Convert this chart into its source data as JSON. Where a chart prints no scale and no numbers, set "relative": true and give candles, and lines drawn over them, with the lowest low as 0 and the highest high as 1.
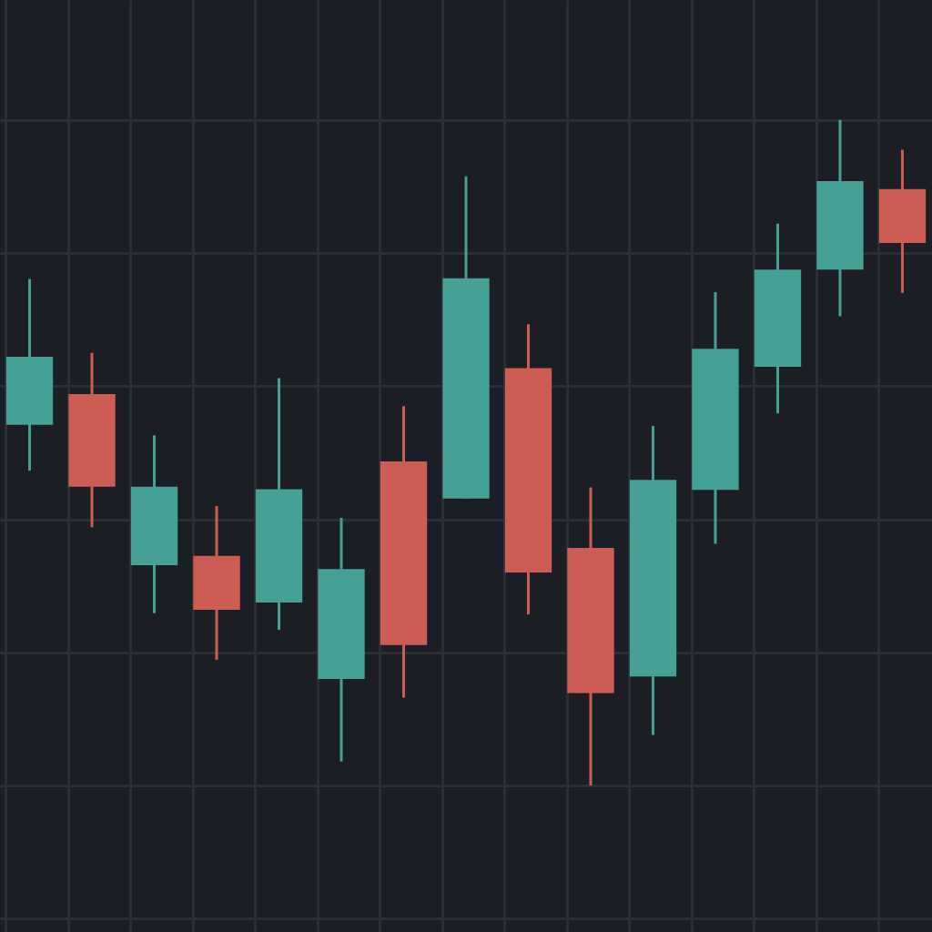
{
  "chart_data": {
    "type": "candlestick",
    "relative": true,
    "grid": true,
    "categories": [
      null,
      null,
      null,
      null,
      null,
      null,
      null,
      null,
      null,
      null,
      null,
      null,
      null,
      null,
      null
    ],
    "ohlc": [
      [
        0.542,
        0.761,
        0.473,
        0.644
      ],
      [
        0.588,
        0.65,
        0.388,
        0.449
      ],
      [
        0.331,
        0.526,
        0.259,
        0.449
      ],
      [
        0.345,
        0.42,
        0.189,
        0.264
      ],
      [
        0.275,
        0.612,
        0.234,
        0.445
      ],
      [
        0.16,
        0.402,
        0.036,
        0.325
      ],
      [
        0.487,
        0.57,
        0.132,
        0.211
      ],
      [
        0.431,
        0.915,
        0.431,
        0.762
      ],
      [
        0.627,
        0.693,
        0.257,
        0.32
      ],
      [
        0.357,
        0.448,
        0,
        0.139
      ],
      [
        0.164,
        0.54,
        0.076,
        0.459
      ],
      [
        0.444,
        0.741,
        0.363,
        0.656
      ],
      [
        0.629,
        0.844,
        0.559,
        0.775
      ],
      [
        0.775,
        1,
        0.705,
        0.908
      ],
      [
        0.896,
        0.955,
        0.74,
        0.815
      ]
    ],
    "colors": [
      "#45a095",
      "#cd5c53",
      "#45a095",
      "#cd5c53",
      "#45a095",
      "#45a095",
      "#cd5c53",
      "#45a095",
      "#cd5c53",
      "#cd5c53",
      "#45a095",
      "#45a095",
      "#45a095",
      "#45a095",
      "#cd5c53"
    ]
  }
}
